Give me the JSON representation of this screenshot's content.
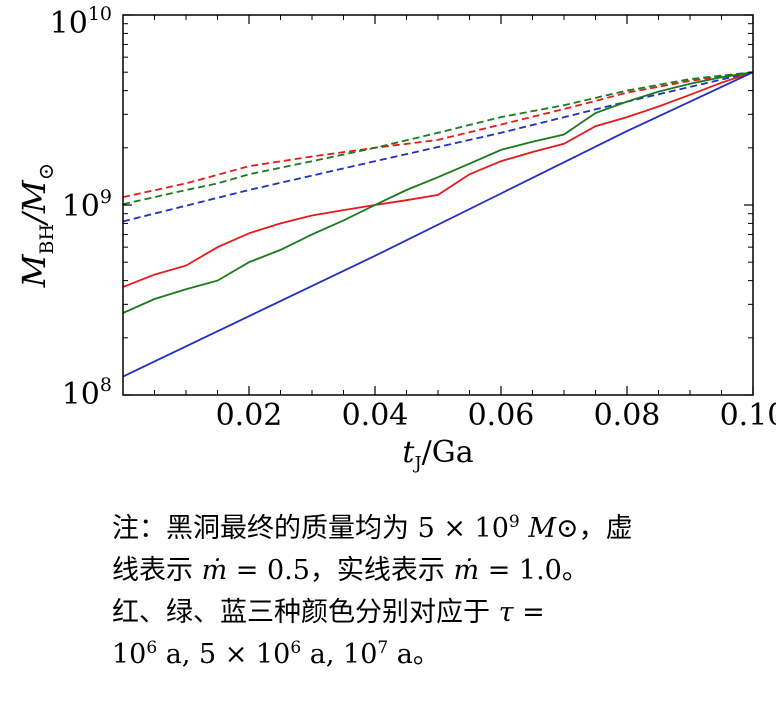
{
  "chart_data": {
    "type": "line",
    "title": "",
    "xlabel": "t_J/Ga",
    "ylabel": "M_BH/M_⊙",
    "x_scale": "linear",
    "y_scale": "log",
    "xlim": [
      0.0,
      0.1
    ],
    "ylim": [
      100000000,
      10000000000
    ],
    "x_ticks": [
      0.02,
      0.04,
      0.06,
      0.08,
      0.1
    ],
    "x_tick_labels": [
      "0.02",
      "0.04",
      "0.06",
      "0.08",
      "0.10"
    ],
    "y_ticks": [
      100000000,
      1000000000,
      10000000000
    ],
    "y_tick_labels": [
      {
        "base": "10",
        "exp": "8"
      },
      {
        "base": "10",
        "exp": "9"
      },
      {
        "base": "10",
        "exp": "10"
      }
    ],
    "grid": false,
    "series": [
      {
        "name": "red dashed (ṁ = 0.5, τ = 10^6 a)",
        "color": "#e41a1c",
        "style": "dashed",
        "x": [
          0.0,
          0.01,
          0.02,
          0.03,
          0.04,
          0.05,
          0.06,
          0.07,
          0.08,
          0.09,
          0.1
        ],
        "y": [
          1100000000,
          1300000000,
          1600000000,
          1800000000,
          2000000000,
          2200000000,
          2650000000,
          3200000000,
          3900000000,
          4500000000,
          5000000000
        ]
      },
      {
        "name": "green dashed (ṁ = 0.5, τ = 5×10^6 a)",
        "color": "#1a7a1a",
        "style": "dashed",
        "x": [
          0.0,
          0.01,
          0.015,
          0.02,
          0.03,
          0.04,
          0.05,
          0.06,
          0.07,
          0.08,
          0.09,
          0.1
        ],
        "y": [
          1010000000,
          1200000000,
          1300000000,
          1450000000,
          1700000000,
          2000000000,
          2400000000,
          2900000000,
          3350000000,
          4000000000,
          4600000000,
          5000000000
        ]
      },
      {
        "name": "blue dashed (ṁ = 0.5, τ = 10^7 a)",
        "color": "#1f2fbf",
        "style": "dashed",
        "x": [
          0.0,
          0.02,
          0.04,
          0.06,
          0.08,
          0.1
        ],
        "y": [
          820000000,
          1200000000,
          1700000000,
          2400000000,
          3500000000,
          5000000000
        ]
      },
      {
        "name": "red solid (ṁ = 1.0, τ = 10^6 a)",
        "color": "#e41a1c",
        "style": "solid",
        "x": [
          0.0,
          0.005,
          0.01,
          0.015,
          0.02,
          0.025,
          0.03,
          0.035,
          0.04,
          0.045,
          0.05,
          0.055,
          0.06,
          0.065,
          0.07,
          0.075,
          0.08,
          0.085,
          0.09,
          0.095,
          0.1
        ],
        "y": [
          370000000,
          430000000,
          480000000,
          600000000,
          710000000,
          800000000,
          880000000,
          940000000,
          1000000000,
          1060000000,
          1130000000,
          1450000000,
          1700000000,
          1900000000,
          2100000000,
          2600000000,
          2900000000,
          3300000000,
          3800000000,
          4400000000,
          5000000000
        ]
      },
      {
        "name": "green solid (ṁ = 1.0, τ = 5×10^6 a)",
        "color": "#1a7a1a",
        "style": "solid",
        "x": [
          0.0,
          0.005,
          0.01,
          0.015,
          0.02,
          0.025,
          0.03,
          0.035,
          0.04,
          0.045,
          0.05,
          0.055,
          0.06,
          0.065,
          0.07,
          0.075,
          0.08,
          0.085,
          0.09,
          0.095,
          0.1
        ],
        "y": [
          270000000,
          320000000,
          360000000,
          400000000,
          500000000,
          580000000,
          700000000,
          830000000,
          1000000000,
          1200000000,
          1400000000,
          1650000000,
          1950000000,
          2150000000,
          2350000000,
          3050000000,
          3500000000,
          3950000000,
          4350000000,
          4700000000,
          5000000000
        ]
      },
      {
        "name": "blue solid (ṁ = 1.0, τ = 10^7 a)",
        "color": "#1f2fbf",
        "style": "solid",
        "x": [
          0.0,
          0.02,
          0.04,
          0.06,
          0.08,
          0.1
        ],
        "y": [
          125000000,
          260000000,
          540000000,
          1150000000,
          2450000000,
          5000000000
        ]
      }
    ]
  },
  "note": {
    "line1_a": "注：黑洞最终的质量均为 5 × 10",
    "line1_exp": "9",
    "line1_b": "M",
    "line1_c": "⊙，虚",
    "line2_a": "线表示 ",
    "line2_m1": "ṁ",
    "line2_b": " = 0.5，实线表示 ",
    "line2_m2": "ṁ",
    "line2_c": " = 1.0。",
    "line3_a": "红、绿、蓝三种颜色分别对应于 ",
    "line3_tau": "τ",
    "line3_b": " =",
    "line4_a": "10",
    "line4_e1": "6",
    "line4_b": " a, 5 × 10",
    "line4_e2": "6",
    "line4_c": " a, 10",
    "line4_e3": "7",
    "line4_d": " a。"
  }
}
